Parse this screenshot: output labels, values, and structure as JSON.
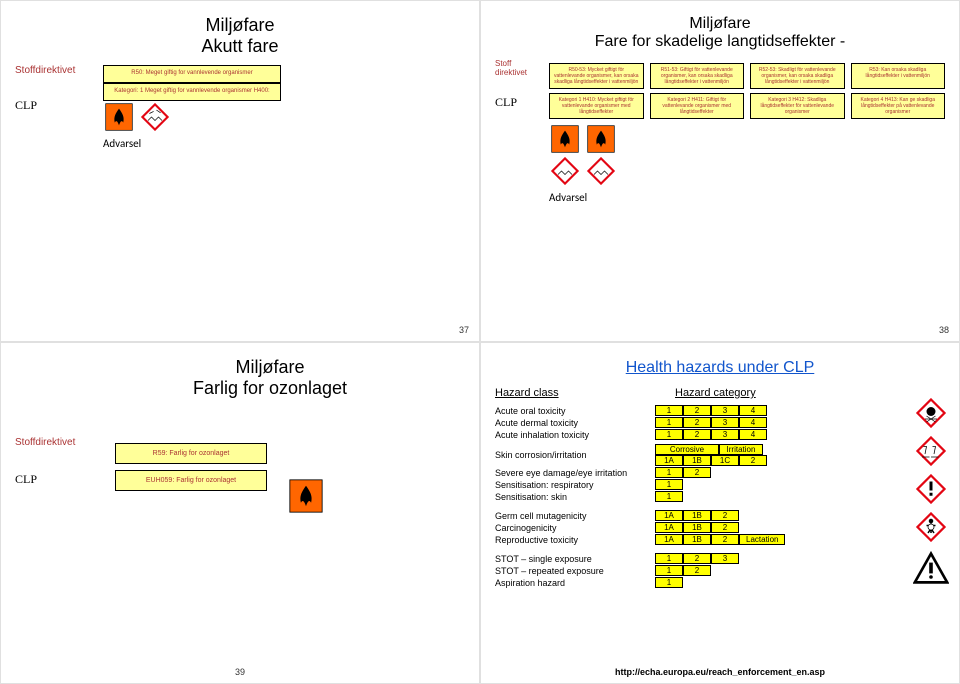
{
  "slide1": {
    "title1": "Miljøfare",
    "title2": "Akutt fare",
    "stoff_label": "Stoffdirektivet",
    "clp_label": "CLP",
    "box_top": "R50:\nMeget giftig for vannlevende organismer",
    "box_bottom": "Kategori: 1\nMeget giftig for vannlevende organismer\nH400:",
    "advarsel": "Advarsel",
    "page": "37"
  },
  "slide2": {
    "title1": "Miljøfare",
    "title2": "Fare for skadelige langtidseffekter -",
    "stoff_label": "Stoff direktivet",
    "clp_label": "CLP",
    "top_boxes": [
      "R50-53: Mycket giftigt för vattenlevande organismer, kan orsaka skadliga långtidseffekter i vattenmiljön",
      "R51-53: Giftigt för vattenlevande organismer, kan orsaka skadliga långtidseffekter i vattenmiljön",
      "R52-53: Skadligt för vattenlevande organismer, kan orsaka skadliga långtidseffekter i vattenmiljön",
      "R53: Kan orsaka skadliga långtidseffekter i vattenmiljön"
    ],
    "bottom_boxes": [
      "Kategori 1\nH410: Mycket giftigt för vattenlevande organismer med långtidseffekter",
      "Kategori 2\nH411: Giftigt för vattenlevande organismer med långtidseffekter",
      "Kategori 3\nH412: Skadliga långtidseffekter för vattenlevande organismer",
      "Kategori 4\nH413: Kan ge skadliga långtidseffekter på vattenlevande organismer"
    ],
    "advarsel": "Advarsel",
    "page": "38"
  },
  "slide3": {
    "title1": "Miljøfare",
    "title2": "Farlig for ozonlaget",
    "stoff_label": "Stoffdirektivet",
    "clp_label": "CLP",
    "box_top": "R59: Farlig for ozonlaget",
    "box_bottom": "EUH059: Farlig for ozonlaget",
    "page": "39"
  },
  "slide4": {
    "title": "Health hazards under CLP",
    "head_class": "Hazard class",
    "head_cat": "Hazard category",
    "rows": [
      {
        "label": "Acute oral toxicity",
        "cats": [
          "1",
          "2",
          "3",
          "4"
        ]
      },
      {
        "label": "Acute dermal toxicity",
        "cats": [
          "1",
          "2",
          "3",
          "4"
        ]
      },
      {
        "label": "Acute inhalation toxicity",
        "cats": [
          "1",
          "2",
          "3",
          "4"
        ]
      }
    ],
    "skin_label": "Skin corrosion/irritation",
    "skin_header": [
      "Corrosive",
      "Irritation"
    ],
    "skin_cats": [
      "1A",
      "1B",
      "1C",
      "2"
    ],
    "rows2": [
      {
        "label": "Severe eye damage/eye irritation",
        "cats": [
          "1",
          "2"
        ]
      },
      {
        "label": "Sensitisation: respiratory",
        "cats": [
          "1"
        ]
      },
      {
        "label": "Sensitisation: skin",
        "cats": [
          "1"
        ]
      }
    ],
    "rows3": [
      {
        "label": "Germ cell mutagenicity",
        "cats": [
          "1A",
          "1B",
          "2"
        ]
      },
      {
        "label": "Carcinogenicity",
        "cats": [
          "1A",
          "1B",
          "2"
        ]
      },
      {
        "label": "Reproductive toxicity",
        "cats": [
          "1A",
          "1B",
          "2",
          "Lactation"
        ]
      }
    ],
    "rows4": [
      {
        "label": "STOT – single exposure",
        "cats": [
          "1",
          "2",
          "3"
        ]
      },
      {
        "label": "STOT – repeated exposure",
        "cats": [
          "1",
          "2"
        ]
      },
      {
        "label": "Aspiration hazard",
        "cats": [
          "1"
        ]
      }
    ],
    "url": "http://echa.europa.eu/reach_enforcement_en.asp"
  },
  "colors": {
    "box_bg": "#ffff99",
    "cat_bg": "#ffff00",
    "label_red": "#a33333",
    "title_blue": "#1155cc"
  }
}
